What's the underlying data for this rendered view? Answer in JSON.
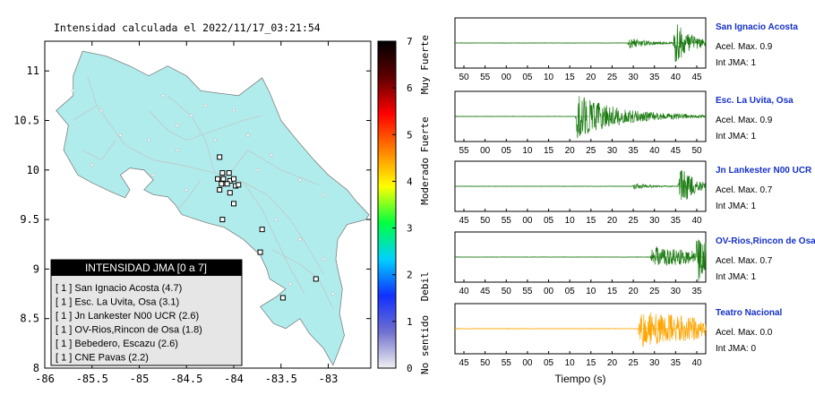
{
  "title": "Intensidad calculada el 2022/11/17_03:21:54",
  "map": {
    "lon_ticks": [
      "-86",
      "-85.5",
      "-85",
      "-84.5",
      "-84",
      "-83.5",
      "-83"
    ],
    "lat_ticks": [
      "8",
      "8.5",
      "9",
      "9.5",
      "10",
      "10.5",
      "11"
    ],
    "lon_range": [
      -86.0,
      -82.55
    ],
    "lat_range": [
      8.0,
      11.3
    ],
    "land_color": "#b0ecec",
    "sea_color": "#ffffff",
    "legend": {
      "title": "INTENSIDAD JMA [0 a 7]",
      "entries": [
        "[ 1 ]  San Ignacio Acosta (4.7)",
        "[ 1 ]  Esc. La Uvita, Osa (3.1)",
        "[ 1 ]  Jn Lankester N00 UCR (2.6)",
        "[ 1 ]  OV-Rios,Rincon de Osa (1.8)",
        "[ 1 ]  Bebedero, Escazu (2.6)",
        "[ 1 ]  CNE Pavas (2.2)"
      ]
    },
    "stations": [
      {
        "lon": -84.15,
        "lat": 10.13
      },
      {
        "lon": -84.12,
        "lat": 9.97
      },
      {
        "lon": -84.05,
        "lat": 9.97
      },
      {
        "lon": -84.17,
        "lat": 9.91
      },
      {
        "lon": -84.11,
        "lat": 9.91
      },
      {
        "lon": -84.04,
        "lat": 9.89
      },
      {
        "lon": -84.0,
        "lat": 9.91
      },
      {
        "lon": -84.13,
        "lat": 9.86
      },
      {
        "lon": -84.07,
        "lat": 9.86
      },
      {
        "lon": -83.98,
        "lat": 9.84
      },
      {
        "lon": -83.95,
        "lat": 9.85
      },
      {
        "lon": -84.15,
        "lat": 9.8
      },
      {
        "lon": -84.04,
        "lat": 9.77
      },
      {
        "lon": -84.0,
        "lat": 9.66
      },
      {
        "lon": -84.12,
        "lat": 9.5
      },
      {
        "lon": -83.7,
        "lat": 9.4
      },
      {
        "lon": -83.72,
        "lat": 9.17
      },
      {
        "lon": -83.13,
        "lat": 8.9
      },
      {
        "lon": -83.48,
        "lat": 8.71
      }
    ]
  },
  "colorbar": {
    "ticks": [
      "0",
      "1",
      "2",
      "3",
      "4",
      "5",
      "6",
      "7"
    ],
    "categories": [
      "No sentido",
      "Debil",
      "Moderado",
      "Fuerte",
      "Muy Fuerte"
    ],
    "colors": [
      "#f0f0f0",
      "#7070d0",
      "#1030ff",
      "#00d0ff",
      "#00ff40",
      "#ffff00",
      "#ff8000",
      "#ff0000",
      "#600000",
      "#000000"
    ]
  },
  "chart_data": [
    {
      "type": "line",
      "name": "San Ignacio Acosta",
      "accel_label": "Acel. Max. 0.9",
      "jma_label": "Int JMA: 1",
      "color": "#1a7a10",
      "x_ticks": [
        "50",
        "55",
        "00",
        "05",
        "10",
        "15",
        "20",
        "25",
        "30",
        "35",
        "40",
        "45"
      ],
      "events": [
        {
          "start": 0.69,
          "peak": 0.25,
          "decay": 0.08
        },
        {
          "start": 0.87,
          "peak": 0.95,
          "decay": 0.07
        }
      ]
    },
    {
      "type": "line",
      "name": "Esc. La Uvita, Osa",
      "accel_label": "Acel. Max. 0.9",
      "jma_label": "Int JMA: 1",
      "color": "#1a7a10",
      "x_ticks": [
        "55",
        "00",
        "05",
        "10",
        "15",
        "20",
        "25",
        "30",
        "35",
        "40",
        "45",
        "50"
      ],
      "events": [
        {
          "start": 0.48,
          "peak": 0.95,
          "decay": 0.18
        }
      ]
    },
    {
      "type": "line",
      "name": "Jn Lankester N00 UCR",
      "accel_label": "Acel. Max. 0.7",
      "jma_label": "Int JMA: 1",
      "color": "#1a7a10",
      "x_ticks": [
        "45",
        "50",
        "55",
        "00",
        "05",
        "10",
        "15",
        "20",
        "25",
        "30",
        "35",
        "40"
      ],
      "events": [
        {
          "start": 0.71,
          "peak": 0.15,
          "decay": 0.06
        },
        {
          "start": 0.89,
          "peak": 0.95,
          "decay": 0.06
        }
      ]
    },
    {
      "type": "line",
      "name": "OV-Rios,Rincon de Osa",
      "accel_label": "Acel. Max. 0.7",
      "jma_label": "Int JMA: 1",
      "color": "#1a7a10",
      "x_ticks": [
        "40",
        "45",
        "50",
        "55",
        "00",
        "05",
        "10",
        "15",
        "20",
        "25",
        "30",
        "35"
      ],
      "events": [
        {
          "start": 0.78,
          "peak": 0.45,
          "decay": 0.3
        },
        {
          "start": 0.96,
          "peak": 0.95,
          "decay": 0.05
        }
      ]
    },
    {
      "type": "line",
      "name": "Teatro Nacional",
      "accel_label": "Acel. Max. 0.0",
      "jma_label": "Int JMA: 0",
      "color": "#ffa500",
      "x_ticks": [
        "45",
        "50",
        "55",
        "00",
        "05",
        "10",
        "15",
        "20",
        "25",
        "30",
        "35",
        "40"
      ],
      "events": [
        {
          "start": 0.73,
          "peak": 0.75,
          "decay": 0.5
        }
      ]
    }
  ],
  "waveform_xlabel": "Tiempo (s)"
}
